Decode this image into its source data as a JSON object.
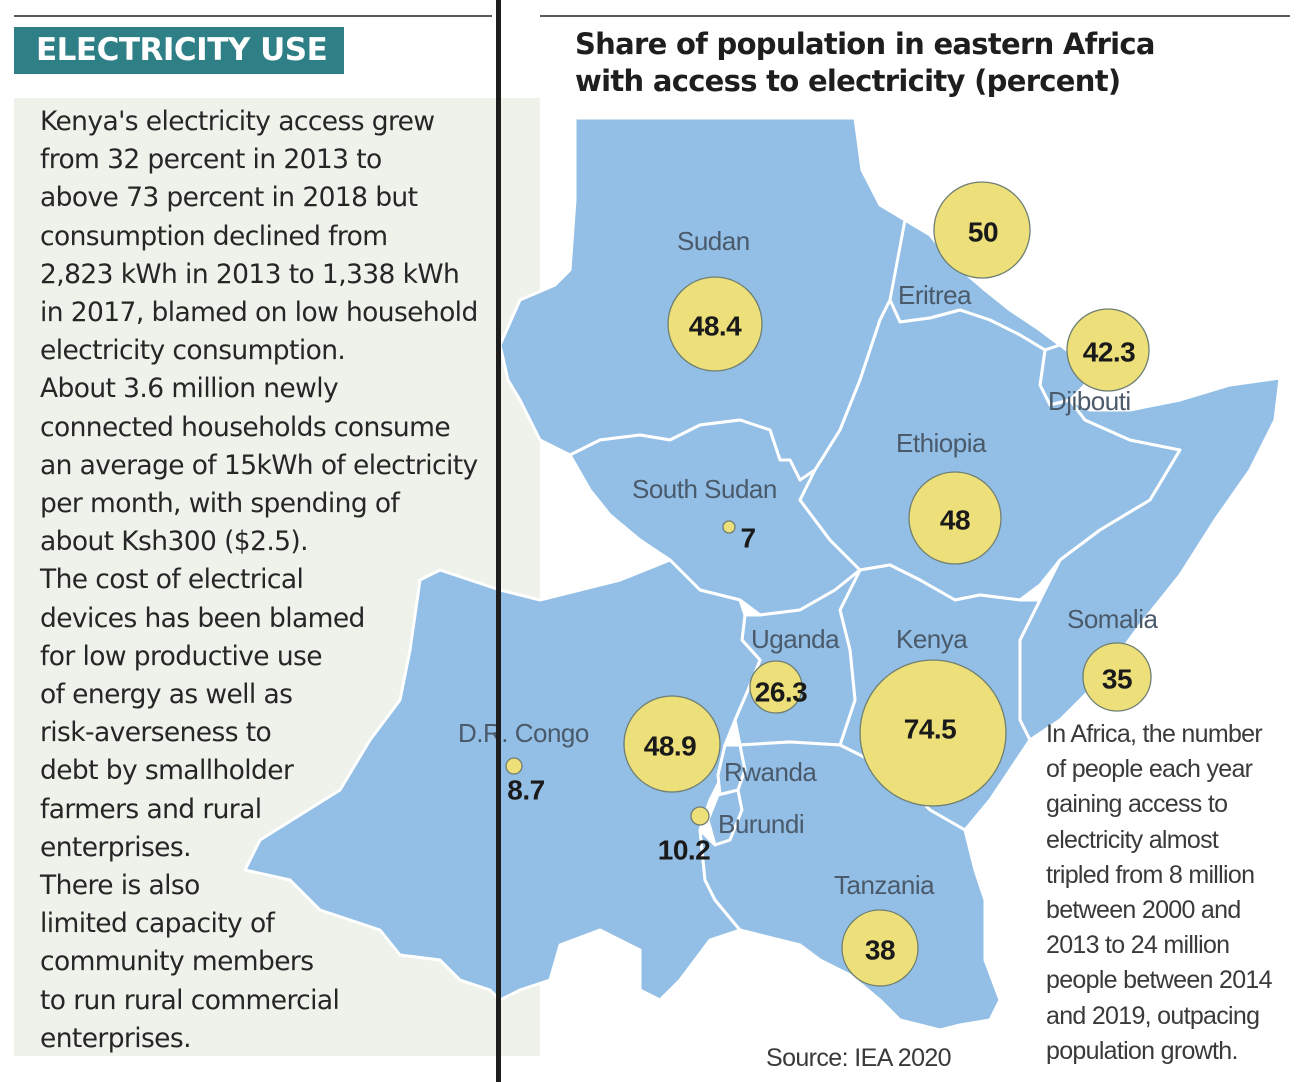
{
  "sidebar": {
    "tag": "ELECTRICITY USE",
    "lines": [
      "Kenya's electricity access grew",
      "from 32 percent in 2013 to",
      "above 73 percent in 2018 but",
      "consumption declined from",
      "2,823 kWh in 2013 to 1,338 kWh",
      "in 2017, blamed on low household",
      "electricity consumption.",
      "About 3.6 million newly",
      "connected households consume",
      "an average of 15kWh of electricity",
      "per month, with spending of",
      "about Ksh300 ($2.5).",
      "The cost of electrical",
      "devices has been blamed",
      "for low productive use",
      "of energy as well as",
      "risk-averseness to",
      "debt by smallholder",
      "farmers and rural",
      "enterprises.",
      "There is also",
      "limited capacity of",
      "community members",
      "to run rural commercial",
      "enterprises."
    ]
  },
  "map": {
    "title_lines": [
      "Share of population in eastern Africa",
      "with access to electricity (percent)"
    ],
    "colors": {
      "land": "#93bfe6",
      "border": "#ffffff",
      "bubble": "#ede07a",
      "tag": "#2f7f86"
    },
    "countries": [
      {
        "name": "Sudan",
        "value": "48.4"
      },
      {
        "name": "Eritrea",
        "value": "50"
      },
      {
        "name": "Djibouti",
        "value": "42.3"
      },
      {
        "name": "Ethiopia",
        "value": "48"
      },
      {
        "name": "South Sudan",
        "value": "7"
      },
      {
        "name": "Somalia",
        "value": "35"
      },
      {
        "name": "Uganda",
        "value": "26.3"
      },
      {
        "name": "Kenya",
        "value": "74.5"
      },
      {
        "name": "D.R. Congo",
        "value": "8.7"
      },
      {
        "name": "Rwanda",
        "value": "48.9"
      },
      {
        "name": "Burundi",
        "value": "10.2"
      },
      {
        "name": "Tanzania",
        "value": "38"
      }
    ],
    "note_lines": [
      "In Africa, the number",
      "of people each year",
      "gaining access to",
      "electricity almost",
      "tripled from 8 million",
      "between 2000 and",
      "2013 to 24 million",
      "people between 2014",
      "and 2019, outpacing",
      "population growth."
    ],
    "source": "Source: IEA 2020"
  }
}
